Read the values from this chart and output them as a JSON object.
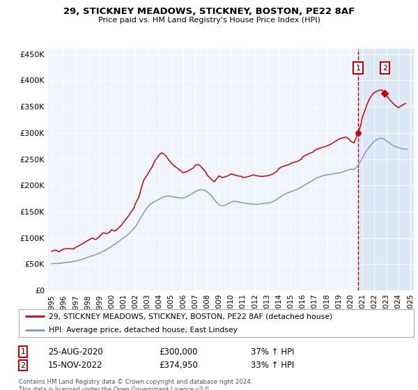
{
  "title": "29, STICKNEY MEADOWS, STICKNEY, BOSTON, PE22 8AF",
  "subtitle": "Price paid vs. HM Land Registry's House Price Index (HPI)",
  "legend_label1": "29, STICKNEY MEADOWS, STICKNEY, BOSTON, PE22 8AF (detached house)",
  "legend_label2": "HPI: Average price, detached house, East Lindsey",
  "footer": "Contains HM Land Registry data © Crown copyright and database right 2024.\nThis data is licensed under the Open Government Licence v3.0.",
  "annotation1": {
    "label": "1",
    "date_x": 2020.65,
    "price": 300000,
    "date_str": "25-AUG-2020",
    "price_str": "£300,000",
    "hpi_str": "37% ↑ HPI"
  },
  "annotation2": {
    "label": "2",
    "date_x": 2022.88,
    "price": 374950,
    "date_str": "15-NOV-2022",
    "price_str": "£374,950",
    "hpi_str": "33% ↑ HPI"
  },
  "ylim": [
    0,
    460000
  ],
  "xlim_start": 1994.7,
  "xlim_end": 2025.3,
  "red_color": "#cc0000",
  "blue_color": "#7799cc",
  "shade_color": "#dce8f5",
  "background_color": "#f0f4ff",
  "grid_color": "#ffffff",
  "hpi_data": [
    [
      1995.0,
      51000
    ],
    [
      1995.25,
      51500
    ],
    [
      1995.5,
      51200
    ],
    [
      1995.75,
      52000
    ],
    [
      1996.0,
      53000
    ],
    [
      1996.25,
      53500
    ],
    [
      1996.5,
      54200
    ],
    [
      1996.75,
      55000
    ],
    [
      1997.0,
      56000
    ],
    [
      1997.25,
      57500
    ],
    [
      1997.5,
      59000
    ],
    [
      1997.75,
      61000
    ],
    [
      1998.0,
      63000
    ],
    [
      1998.25,
      65000
    ],
    [
      1998.5,
      67000
    ],
    [
      1998.75,
      69000
    ],
    [
      1999.0,
      71000
    ],
    [
      1999.25,
      74000
    ],
    [
      1999.5,
      77000
    ],
    [
      1999.75,
      80000
    ],
    [
      2000.0,
      84000
    ],
    [
      2000.25,
      88000
    ],
    [
      2000.5,
      92000
    ],
    [
      2000.75,
      96000
    ],
    [
      2001.0,
      100000
    ],
    [
      2001.25,
      104000
    ],
    [
      2001.5,
      109000
    ],
    [
      2001.75,
      115000
    ],
    [
      2002.0,
      121000
    ],
    [
      2002.25,
      130000
    ],
    [
      2002.5,
      140000
    ],
    [
      2002.75,
      150000
    ],
    [
      2003.0,
      158000
    ],
    [
      2003.25,
      164000
    ],
    [
      2003.5,
      168000
    ],
    [
      2003.75,
      171000
    ],
    [
      2004.0,
      174000
    ],
    [
      2004.25,
      177000
    ],
    [
      2004.5,
      179000
    ],
    [
      2004.75,
      180000
    ],
    [
      2005.0,
      179000
    ],
    [
      2005.25,
      178000
    ],
    [
      2005.5,
      177000
    ],
    [
      2005.75,
      176000
    ],
    [
      2006.0,
      176000
    ],
    [
      2006.25,
      178000
    ],
    [
      2006.5,
      181000
    ],
    [
      2006.75,
      184000
    ],
    [
      2007.0,
      188000
    ],
    [
      2007.25,
      191000
    ],
    [
      2007.5,
      192000
    ],
    [
      2007.75,
      191000
    ],
    [
      2008.0,
      188000
    ],
    [
      2008.25,
      183000
    ],
    [
      2008.5,
      177000
    ],
    [
      2008.75,
      169000
    ],
    [
      2009.0,
      163000
    ],
    [
      2009.25,
      161000
    ],
    [
      2009.5,
      162000
    ],
    [
      2009.75,
      165000
    ],
    [
      2010.0,
      168000
    ],
    [
      2010.25,
      170000
    ],
    [
      2010.5,
      169000
    ],
    [
      2010.75,
      168000
    ],
    [
      2011.0,
      167000
    ],
    [
      2011.25,
      166000
    ],
    [
      2011.5,
      165000
    ],
    [
      2011.75,
      165000
    ],
    [
      2012.0,
      164000
    ],
    [
      2012.25,
      164000
    ],
    [
      2012.5,
      165000
    ],
    [
      2012.75,
      166000
    ],
    [
      2013.0,
      166000
    ],
    [
      2013.25,
      167000
    ],
    [
      2013.5,
      169000
    ],
    [
      2013.75,
      172000
    ],
    [
      2014.0,
      176000
    ],
    [
      2014.25,
      180000
    ],
    [
      2014.5,
      183000
    ],
    [
      2014.75,
      186000
    ],
    [
      2015.0,
      188000
    ],
    [
      2015.25,
      190000
    ],
    [
      2015.5,
      192000
    ],
    [
      2015.75,
      195000
    ],
    [
      2016.0,
      198000
    ],
    [
      2016.25,
      202000
    ],
    [
      2016.5,
      205000
    ],
    [
      2016.75,
      208000
    ],
    [
      2017.0,
      212000
    ],
    [
      2017.25,
      215000
    ],
    [
      2017.5,
      217000
    ],
    [
      2017.75,
      219000
    ],
    [
      2018.0,
      220000
    ],
    [
      2018.25,
      221000
    ],
    [
      2018.5,
      222000
    ],
    [
      2018.75,
      223000
    ],
    [
      2019.0,
      224000
    ],
    [
      2019.25,
      225000
    ],
    [
      2019.5,
      227000
    ],
    [
      2019.75,
      229000
    ],
    [
      2020.0,
      231000
    ],
    [
      2020.25,
      230000
    ],
    [
      2020.5,
      234000
    ],
    [
      2020.75,
      242000
    ],
    [
      2021.0,
      252000
    ],
    [
      2021.25,
      263000
    ],
    [
      2021.5,
      271000
    ],
    [
      2021.75,
      278000
    ],
    [
      2022.0,
      284000
    ],
    [
      2022.25,
      288000
    ],
    [
      2022.5,
      290000
    ],
    [
      2022.75,
      289000
    ],
    [
      2023.0,
      285000
    ],
    [
      2023.25,
      281000
    ],
    [
      2023.5,
      277000
    ],
    [
      2023.75,
      274000
    ],
    [
      2024.0,
      272000
    ],
    [
      2024.25,
      270000
    ],
    [
      2024.5,
      269000
    ],
    [
      2024.75,
      269000
    ]
  ],
  "price_data": [
    [
      1995.0,
      75000
    ],
    [
      1995.3,
      77000
    ],
    [
      1995.6,
      74000
    ],
    [
      1995.9,
      78000
    ],
    [
      1996.0,
      79000
    ],
    [
      1996.4,
      80000
    ],
    [
      1996.8,
      79000
    ],
    [
      1997.0,
      82000
    ],
    [
      1997.4,
      87000
    ],
    [
      1997.8,
      92000
    ],
    [
      1998.0,
      95000
    ],
    [
      1998.4,
      100000
    ],
    [
      1998.7,
      97000
    ],
    [
      1999.0,
      103000
    ],
    [
      1999.3,
      110000
    ],
    [
      1999.6,
      108000
    ],
    [
      1999.9,
      112000
    ],
    [
      2000.0,
      116000
    ],
    [
      2000.3,
      113000
    ],
    [
      2000.6,
      119000
    ],
    [
      2000.9,
      126000
    ],
    [
      2001.0,
      130000
    ],
    [
      2001.3,
      138000
    ],
    [
      2001.6,
      148000
    ],
    [
      2001.9,
      158000
    ],
    [
      2002.0,
      165000
    ],
    [
      2002.3,
      178000
    ],
    [
      2002.5,
      195000
    ],
    [
      2002.7,
      210000
    ],
    [
      2003.0,
      220000
    ],
    [
      2003.2,
      228000
    ],
    [
      2003.4,
      235000
    ],
    [
      2003.6,
      245000
    ],
    [
      2003.8,
      252000
    ],
    [
      2004.0,
      258000
    ],
    [
      2004.2,
      262000
    ],
    [
      2004.4,
      260000
    ],
    [
      2004.6,
      255000
    ],
    [
      2004.8,
      248000
    ],
    [
      2005.0,
      243000
    ],
    [
      2005.2,
      238000
    ],
    [
      2005.5,
      233000
    ],
    [
      2005.8,
      228000
    ],
    [
      2006.0,
      224000
    ],
    [
      2006.3,
      226000
    ],
    [
      2006.6,
      230000
    ],
    [
      2006.9,
      234000
    ],
    [
      2007.0,
      238000
    ],
    [
      2007.2,
      240000
    ],
    [
      2007.4,
      238000
    ],
    [
      2007.6,
      233000
    ],
    [
      2007.9,
      225000
    ],
    [
      2008.0,
      220000
    ],
    [
      2008.3,
      213000
    ],
    [
      2008.6,
      207000
    ],
    [
      2008.9,
      215000
    ],
    [
      2009.0,
      218000
    ],
    [
      2009.3,
      215000
    ],
    [
      2009.6,
      217000
    ],
    [
      2009.9,
      220000
    ],
    [
      2010.0,
      222000
    ],
    [
      2010.3,
      220000
    ],
    [
      2010.6,
      218000
    ],
    [
      2010.9,
      217000
    ],
    [
      2011.0,
      215000
    ],
    [
      2011.3,
      216000
    ],
    [
      2011.6,
      218000
    ],
    [
      2011.9,
      220000
    ],
    [
      2012.0,
      219000
    ],
    [
      2012.3,
      218000
    ],
    [
      2012.6,
      217000
    ],
    [
      2012.9,
      218000
    ],
    [
      2013.0,
      218000
    ],
    [
      2013.3,
      220000
    ],
    [
      2013.6,
      223000
    ],
    [
      2013.9,
      228000
    ],
    [
      2014.0,
      232000
    ],
    [
      2014.3,
      236000
    ],
    [
      2014.6,
      238000
    ],
    [
      2014.9,
      240000
    ],
    [
      2015.0,
      242000
    ],
    [
      2015.3,
      244000
    ],
    [
      2015.6,
      246000
    ],
    [
      2015.9,
      250000
    ],
    [
      2016.0,
      254000
    ],
    [
      2016.3,
      258000
    ],
    [
      2016.6,
      261000
    ],
    [
      2016.9,
      264000
    ],
    [
      2017.0,
      267000
    ],
    [
      2017.3,
      270000
    ],
    [
      2017.6,
      272000
    ],
    [
      2017.9,
      274000
    ],
    [
      2018.0,
      275000
    ],
    [
      2018.3,
      278000
    ],
    [
      2018.6,
      282000
    ],
    [
      2018.9,
      286000
    ],
    [
      2019.0,
      288000
    ],
    [
      2019.3,
      290000
    ],
    [
      2019.6,
      292000
    ],
    [
      2019.9,
      288000
    ],
    [
      2020.0,
      284000
    ],
    [
      2020.3,
      281000
    ],
    [
      2020.65,
      300000
    ],
    [
      2020.9,
      318000
    ],
    [
      2021.0,
      330000
    ],
    [
      2021.2,
      342000
    ],
    [
      2021.4,
      355000
    ],
    [
      2021.6,
      365000
    ],
    [
      2021.8,
      372000
    ],
    [
      2022.0,
      377000
    ],
    [
      2022.3,
      380000
    ],
    [
      2022.6,
      382000
    ],
    [
      2022.88,
      374950
    ],
    [
      2023.1,
      368000
    ],
    [
      2023.4,
      360000
    ],
    [
      2023.7,
      353000
    ],
    [
      2024.0,
      348000
    ],
    [
      2024.3,
      352000
    ],
    [
      2024.6,
      356000
    ]
  ]
}
